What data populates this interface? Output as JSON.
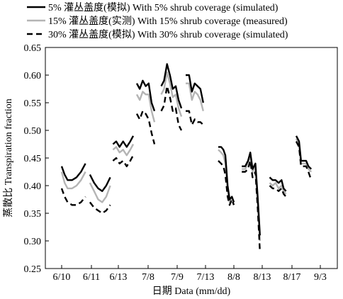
{
  "chart_data": {
    "type": "line",
    "xlabel": "日期 Data (mm/dd)",
    "ylabel": "蒸散比 Transpiration fraction",
    "ylim": [
      0.25,
      0.65
    ],
    "yticks": [
      0.25,
      0.3,
      0.35,
      0.4,
      0.45,
      0.5,
      0.55,
      0.6,
      0.65
    ],
    "categories": [
      "6/10",
      "6/11",
      "6/13",
      "7/8",
      "7/9",
      "7/13",
      "8/8",
      "8/13",
      "8/17",
      "9/3"
    ],
    "grid": false,
    "legend_position": "top",
    "series": [
      {
        "name": "5% 灌丛盖度(模拟) With 5% shrub coverage (simulated)",
        "color": "#000000",
        "dash": "solid",
        "segments": [
          [
            [
              0.0,
              0.435
            ],
            [
              0.1,
              0.42
            ],
            [
              0.2,
              0.41
            ],
            [
              0.35,
              0.41
            ],
            [
              0.5,
              0.415
            ],
            [
              0.65,
              0.425
            ],
            [
              0.8,
              0.44
            ]
          ],
          [
            [
              0.95,
              0.42
            ],
            [
              1.1,
              0.405
            ],
            [
              1.25,
              0.395
            ],
            [
              1.4,
              0.39
            ],
            [
              1.55,
              0.4
            ],
            [
              1.7,
              0.415
            ]
          ],
          [
            [
              1.8,
              0.475
            ],
            [
              1.92,
              0.48
            ],
            [
              2.04,
              0.47
            ],
            [
              2.16,
              0.48
            ],
            [
              2.28,
              0.47
            ],
            [
              2.4,
              0.48
            ],
            [
              2.5,
              0.49
            ]
          ],
          [
            [
              2.62,
              0.585
            ],
            [
              2.72,
              0.575
            ],
            [
              2.82,
              0.59
            ],
            [
              2.92,
              0.58
            ],
            [
              3.02,
              0.585
            ],
            [
              3.12,
              0.55
            ],
            [
              3.22,
              0.535
            ]
          ],
          [
            [
              3.45,
              0.58
            ],
            [
              3.55,
              0.59
            ],
            [
              3.65,
              0.62
            ],
            [
              3.75,
              0.6
            ],
            [
              3.85,
              0.575
            ],
            [
              3.95,
              0.58
            ],
            [
              4.05,
              0.555
            ],
            [
              4.15,
              0.54
            ]
          ],
          [
            [
              4.3,
              0.6
            ],
            [
              4.42,
              0.6
            ],
            [
              4.52,
              0.57
            ],
            [
              4.62,
              0.585
            ],
            [
              4.72,
              0.58
            ],
            [
              4.82,
              0.575
            ],
            [
              4.92,
              0.55
            ]
          ],
          [
            [
              5.45,
              0.47
            ],
            [
              5.55,
              0.47
            ],
            [
              5.63,
              0.465
            ],
            [
              5.7,
              0.455
            ],
            [
              5.78,
              0.4
            ],
            [
              5.85,
              0.375
            ],
            [
              5.93,
              0.38
            ],
            [
              6.0,
              0.37
            ]
          ],
          [
            [
              6.28,
              0.435
            ],
            [
              6.4,
              0.435
            ],
            [
              6.5,
              0.445
            ],
            [
              6.58,
              0.46
            ],
            [
              6.66,
              0.43
            ],
            [
              6.76,
              0.44
            ],
            [
              6.84,
              0.38
            ],
            [
              6.92,
              0.31
            ]
          ],
          [
            [
              7.25,
              0.415
            ],
            [
              7.35,
              0.41
            ],
            [
              7.45,
              0.41
            ],
            [
              7.55,
              0.405
            ],
            [
              7.65,
              0.41
            ],
            [
              7.72,
              0.395
            ],
            [
              7.8,
              0.39
            ]
          ],
          [
            [
              8.15,
              0.49
            ],
            [
              8.25,
              0.48
            ],
            [
              8.32,
              0.445
            ],
            [
              8.4,
              0.445
            ],
            [
              8.5,
              0.445
            ],
            [
              8.58,
              0.435
            ],
            [
              8.68,
              0.43
            ]
          ]
        ]
      },
      {
        "name": "15% 灌丛盖度(实测) With 15% shrub coverage (measured)",
        "color": "#b4b4b4",
        "dash": "solid",
        "segments": [
          [
            [
              0.0,
              0.425
            ],
            [
              0.1,
              0.405
            ],
            [
              0.2,
              0.395
            ],
            [
              0.35,
              0.395
            ],
            [
              0.5,
              0.4
            ],
            [
              0.65,
              0.41
            ],
            [
              0.8,
              0.425
            ]
          ],
          [
            [
              0.95,
              0.405
            ],
            [
              1.1,
              0.39
            ],
            [
              1.25,
              0.375
            ],
            [
              1.4,
              0.37
            ],
            [
              1.55,
              0.38
            ],
            [
              1.7,
              0.4
            ]
          ],
          [
            [
              1.8,
              0.465
            ],
            [
              1.92,
              0.47
            ],
            [
              2.04,
              0.46
            ],
            [
              2.16,
              0.465
            ],
            [
              2.28,
              0.455
            ],
            [
              2.4,
              0.465
            ],
            [
              2.5,
              0.475
            ]
          ],
          [
            [
              2.62,
              0.565
            ],
            [
              2.72,
              0.555
            ],
            [
              2.82,
              0.57
            ],
            [
              2.92,
              0.565
            ],
            [
              3.02,
              0.565
            ],
            [
              3.12,
              0.535
            ],
            [
              3.22,
              0.515
            ]
          ],
          [
            [
              3.45,
              0.565
            ],
            [
              3.55,
              0.575
            ],
            [
              3.65,
              0.605
            ],
            [
              3.75,
              0.585
            ],
            [
              3.85,
              0.56
            ],
            [
              3.95,
              0.565
            ],
            [
              4.05,
              0.54
            ],
            [
              4.15,
              0.525
            ]
          ],
          [
            [
              4.3,
              0.585
            ],
            [
              4.42,
              0.585
            ],
            [
              4.52,
              0.555
            ],
            [
              4.62,
              0.57
            ],
            [
              4.72,
              0.565
            ],
            [
              4.82,
              0.555
            ],
            [
              4.92,
              0.535
            ]
          ],
          [
            [
              5.45,
              0.465
            ],
            [
              5.55,
              0.46
            ],
            [
              5.63,
              0.455
            ],
            [
              5.7,
              0.44
            ],
            [
              5.78,
              0.395
            ],
            [
              5.85,
              0.37
            ],
            [
              5.93,
              0.38
            ],
            [
              6.0,
              0.37
            ]
          ],
          [
            [
              6.28,
              0.43
            ],
            [
              6.4,
              0.43
            ],
            [
              6.5,
              0.44
            ],
            [
              6.58,
              0.455
            ],
            [
              6.66,
              0.425
            ],
            [
              6.76,
              0.435
            ],
            [
              6.84,
              0.37
            ],
            [
              6.92,
              0.3
            ]
          ],
          [
            [
              7.25,
              0.405
            ],
            [
              7.35,
              0.4
            ],
            [
              7.45,
              0.405
            ],
            [
              7.55,
              0.395
            ],
            [
              7.65,
              0.4
            ],
            [
              7.72,
              0.39
            ],
            [
              7.8,
              0.385
            ]
          ],
          [
            [
              8.15,
              0.485
            ],
            [
              8.25,
              0.475
            ],
            [
              8.32,
              0.44
            ],
            [
              8.4,
              0.44
            ],
            [
              8.5,
              0.44
            ],
            [
              8.58,
              0.43
            ],
            [
              8.68,
              0.425
            ]
          ]
        ]
      },
      {
        "name": "30% 灌丛盖度(模拟) With 30% shrub coverage (simulated)",
        "color": "#000000",
        "dash": "dashed",
        "segments": [
          [
            [
              0.0,
              0.395
            ],
            [
              0.1,
              0.38
            ],
            [
              0.2,
              0.37
            ],
            [
              0.35,
              0.365
            ],
            [
              0.5,
              0.365
            ],
            [
              0.65,
              0.37
            ],
            [
              0.8,
              0.38
            ]
          ],
          [
            [
              0.95,
              0.37
            ],
            [
              1.1,
              0.36
            ],
            [
              1.25,
              0.355
            ],
            [
              1.4,
              0.35
            ],
            [
              1.55,
              0.355
            ],
            [
              1.7,
              0.365
            ]
          ],
          [
            [
              1.8,
              0.445
            ],
            [
              1.92,
              0.45
            ],
            [
              2.04,
              0.44
            ],
            [
              2.16,
              0.445
            ],
            [
              2.28,
              0.435
            ],
            [
              2.4,
              0.445
            ],
            [
              2.5,
              0.455
            ]
          ],
          [
            [
              2.62,
              0.53
            ],
            [
              2.72,
              0.52
            ],
            [
              2.82,
              0.535
            ],
            [
              2.92,
              0.53
            ],
            [
              3.02,
              0.52
            ],
            [
              3.12,
              0.495
            ],
            [
              3.22,
              0.475
            ]
          ],
          [
            [
              3.45,
              0.535
            ],
            [
              3.55,
              0.545
            ],
            [
              3.65,
              0.58
            ],
            [
              3.75,
              0.56
            ],
            [
              3.85,
              0.535
            ],
            [
              3.95,
              0.54
            ],
            [
              4.05,
              0.51
            ],
            [
              4.15,
              0.5
            ]
          ],
          [
            [
              4.3,
              0.535
            ],
            [
              4.42,
              0.535
            ],
            [
              4.52,
              0.51
            ],
            [
              4.62,
              0.52
            ],
            [
              4.72,
              0.515
            ],
            [
              4.82,
              0.515
            ],
            [
              4.92,
              0.51
            ]
          ],
          [
            [
              5.45,
              0.445
            ],
            [
              5.55,
              0.44
            ],
            [
              5.63,
              0.435
            ],
            [
              5.7,
              0.42
            ],
            [
              5.78,
              0.38
            ],
            [
              5.85,
              0.365
            ],
            [
              5.93,
              0.375
            ],
            [
              6.0,
              0.365
            ]
          ],
          [
            [
              6.28,
              0.425
            ],
            [
              6.4,
              0.425
            ],
            [
              6.5,
              0.43
            ],
            [
              6.58,
              0.445
            ],
            [
              6.66,
              0.415
            ],
            [
              6.76,
              0.425
            ],
            [
              6.84,
              0.36
            ],
            [
              6.92,
              0.28
            ]
          ],
          [
            [
              7.25,
              0.4
            ],
            [
              7.35,
              0.395
            ],
            [
              7.45,
              0.395
            ],
            [
              7.55,
              0.39
            ],
            [
              7.65,
              0.395
            ],
            [
              7.72,
              0.385
            ],
            [
              7.8,
              0.38
            ]
          ],
          [
            [
              8.15,
              0.48
            ],
            [
              8.25,
              0.47
            ],
            [
              8.32,
              0.435
            ],
            [
              8.4,
              0.435
            ],
            [
              8.5,
              0.435
            ],
            [
              8.58,
              0.425
            ],
            [
              8.68,
              0.41
            ]
          ]
        ]
      }
    ]
  }
}
